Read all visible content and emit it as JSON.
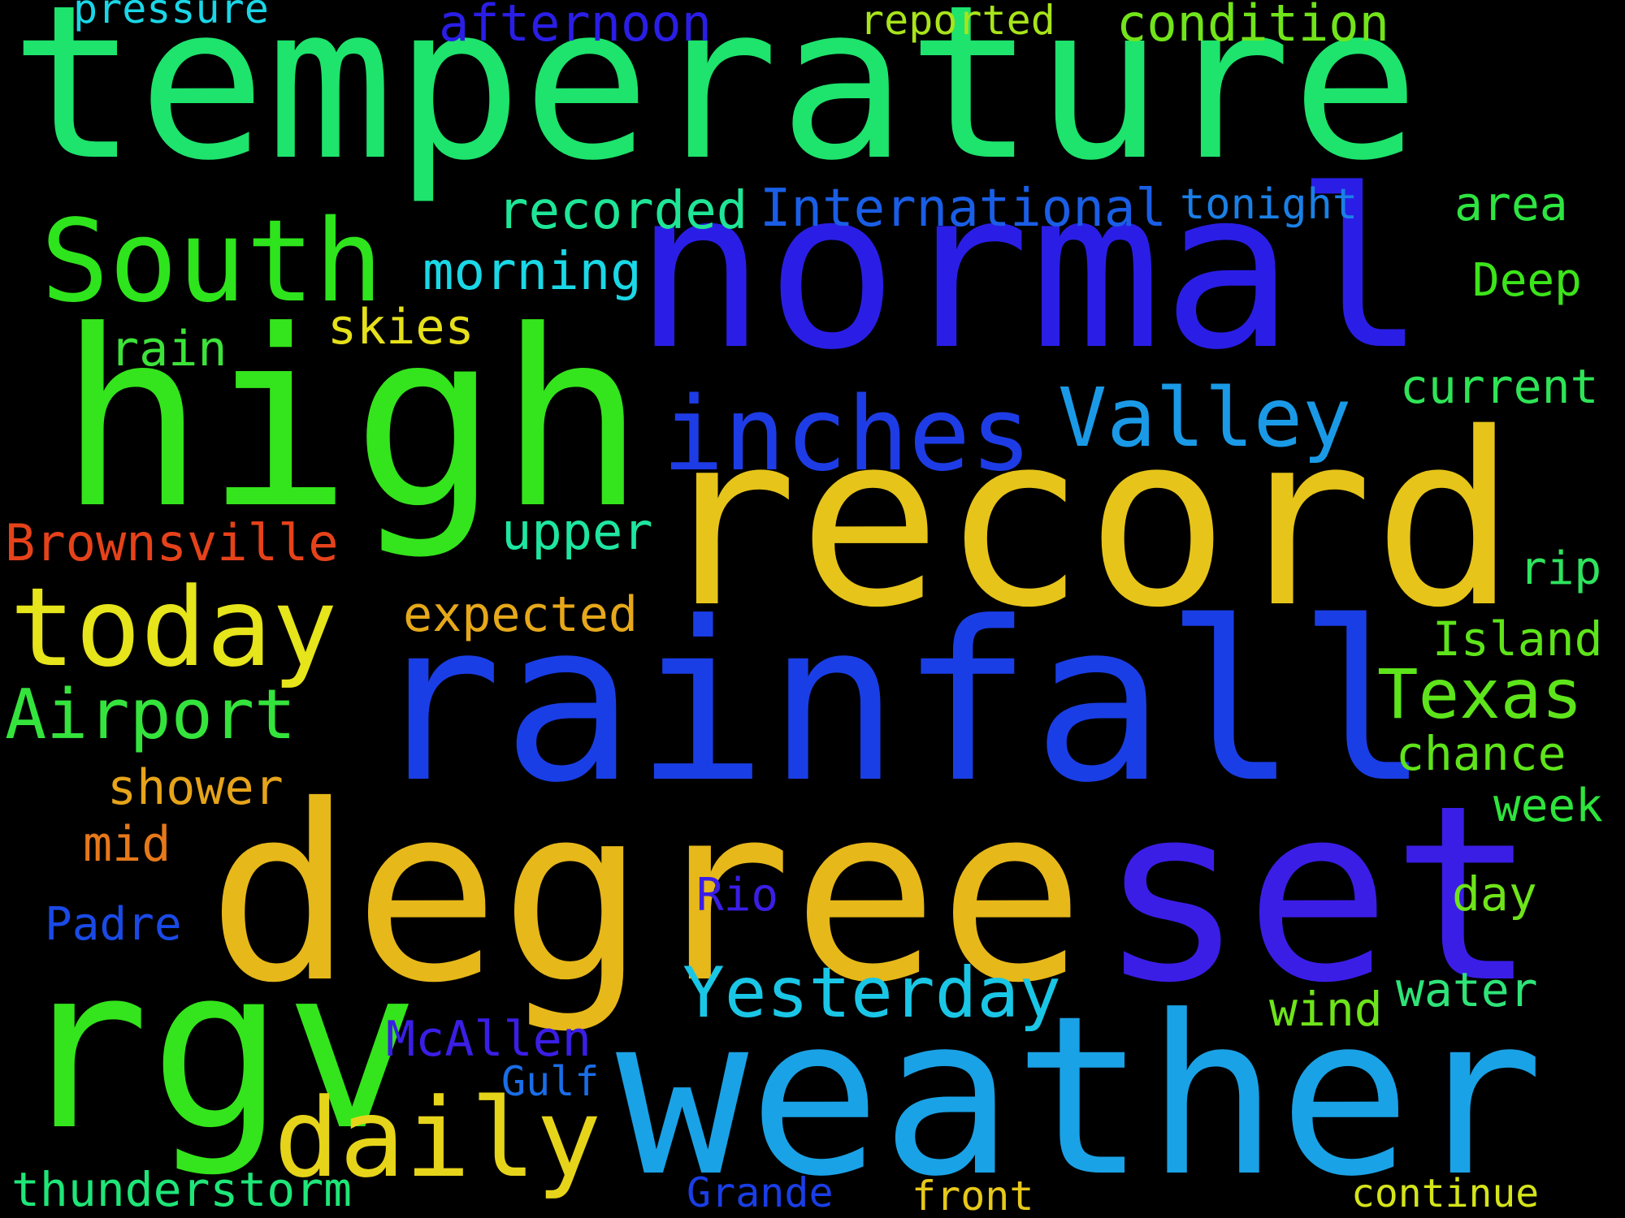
{
  "words": [
    {
      "text": "temperature",
      "color": "#1ee36c"
    },
    {
      "text": "normal",
      "color": "#2a1ee6"
    },
    {
      "text": "high",
      "color": "#34e41c"
    },
    {
      "text": "record",
      "color": "#e6c41a"
    },
    {
      "text": "rainfall",
      "color": "#1a3ee6"
    },
    {
      "text": "degree",
      "color": "#e6b81a"
    },
    {
      "text": "set",
      "color": "#3a1ee6"
    },
    {
      "text": "rgv",
      "color": "#34e41c"
    },
    {
      "text": "weather",
      "color": "#1aa2e6"
    },
    {
      "text": "South",
      "color": "#2ee41c"
    },
    {
      "text": "inches",
      "color": "#1e3ce6"
    },
    {
      "text": "today",
      "color": "#e6e41a"
    },
    {
      "text": "daily",
      "color": "#e6d41a"
    },
    {
      "text": "Valley",
      "color": "#1a9ae6"
    },
    {
      "text": "Airport",
      "color": "#34e43c"
    },
    {
      "text": "Texas",
      "color": "#5ee41a"
    },
    {
      "text": "Yesterday",
      "color": "#1ac6e6"
    },
    {
      "text": "International",
      "color": "#1a5ee6"
    },
    {
      "text": "recorded",
      "color": "#1ee696"
    },
    {
      "text": "morning",
      "color": "#1ad8e6"
    },
    {
      "text": "rain",
      "color": "#3ce43a"
    },
    {
      "text": "skies",
      "color": "#e6e01a"
    },
    {
      "text": "upper",
      "color": "#1ee6a0"
    },
    {
      "text": "Brownsville",
      "color": "#e6421a"
    },
    {
      "text": "expected",
      "color": "#e6a81a"
    },
    {
      "text": "shower",
      "color": "#e6a41a"
    },
    {
      "text": "mid",
      "color": "#e6781a"
    },
    {
      "text": "Padre",
      "color": "#1a4ae6"
    },
    {
      "text": "Rio",
      "color": "#3a1ee6"
    },
    {
      "text": "McAllen",
      "color": "#3a1ee6"
    },
    {
      "text": "Gulf",
      "color": "#1a6ee6"
    },
    {
      "text": "thunderstorm",
      "color": "#1ee678"
    },
    {
      "text": "Grande",
      "color": "#1a3ee6"
    },
    {
      "text": "front",
      "color": "#e6c81a"
    },
    {
      "text": "continue",
      "color": "#d4e41a"
    },
    {
      "text": "afternoon",
      "color": "#2a1ee6"
    },
    {
      "text": "pressure",
      "color": "#1ad6e6"
    },
    {
      "text": "reported",
      "color": "#a8e41a"
    },
    {
      "text": "condition",
      "color": "#72e41a"
    },
    {
      "text": "tonight",
      "color": "#1a80e6"
    },
    {
      "text": "area",
      "color": "#2ee440"
    },
    {
      "text": "Deep",
      "color": "#3ce41a"
    },
    {
      "text": "current",
      "color": "#2ee456"
    },
    {
      "text": "rip",
      "color": "#2ee45e"
    },
    {
      "text": "Island",
      "color": "#5ee41a"
    },
    {
      "text": "chance",
      "color": "#5ee41a"
    },
    {
      "text": "week",
      "color": "#2ee43c"
    },
    {
      "text": "day",
      "color": "#6ee41a"
    },
    {
      "text": "water",
      "color": "#2ee478"
    },
    {
      "text": "wind",
      "color": "#6ee41a"
    }
  ]
}
